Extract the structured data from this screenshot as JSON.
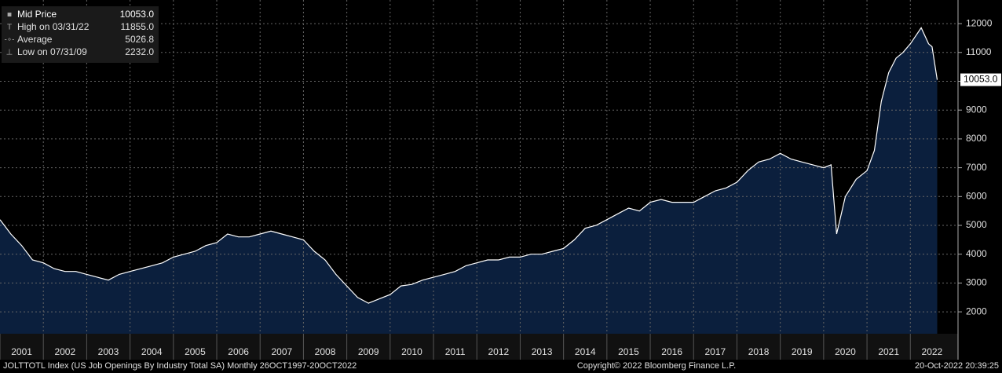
{
  "chart_data": {
    "type": "area",
    "legend": [
      {
        "label": "Mid Price",
        "value": 10053,
        "value_label": "10053.0"
      },
      {
        "label": "High on 03/31/22",
        "value": 11855,
        "value_label": "11855.0"
      },
      {
        "label": "Average",
        "value": 5026.8,
        "value_label": "5026.8"
      },
      {
        "label": "Low on 07/31/09",
        "value": 2232,
        "value_label": "2232.0"
      }
    ],
    "last_value": 10053,
    "last_value_label": "10053.0",
    "footer_left": "JOLTTOTL Index (US Job Openings By Industry Total SA)  Monthly 26OCT1997-20OCT2022",
    "footer_center": "Copyright© 2022 Bloomberg Finance L.P.",
    "footer_right": "20-Oct-2022 20:39:25",
    "color": "#ffffff",
    "fill": "#0b1f3d",
    "grid": true,
    "x": [
      2001.0,
      2001.25,
      2001.5,
      2001.75,
      2002.0,
      2002.25,
      2002.5,
      2002.75,
      2003.0,
      2003.25,
      2003.5,
      2003.75,
      2004.0,
      2004.25,
      2004.5,
      2004.75,
      2005.0,
      2005.25,
      2005.5,
      2005.75,
      2006.0,
      2006.25,
      2006.5,
      2006.75,
      2007.0,
      2007.25,
      2007.5,
      2007.75,
      2008.0,
      2008.25,
      2008.5,
      2008.75,
      2009.0,
      2009.25,
      2009.5,
      2009.75,
      2010.0,
      2010.25,
      2010.5,
      2010.75,
      2011.0,
      2011.25,
      2011.5,
      2011.75,
      2012.0,
      2012.25,
      2012.5,
      2012.75,
      2013.0,
      2013.25,
      2013.5,
      2013.75,
      2014.0,
      2014.25,
      2014.5,
      2014.75,
      2015.0,
      2015.25,
      2015.5,
      2015.75,
      2016.0,
      2016.25,
      2016.5,
      2016.75,
      2017.0,
      2017.25,
      2017.5,
      2017.75,
      2018.0,
      2018.25,
      2018.5,
      2018.75,
      2019.0,
      2019.25,
      2019.5,
      2019.75,
      2020.0,
      2020.17,
      2020.3,
      2020.5,
      2020.75,
      2021.0,
      2021.17,
      2021.33,
      2021.5,
      2021.67,
      2021.83,
      2022.0,
      2022.25,
      2022.42,
      2022.5,
      2022.62
    ],
    "values": [
      5200,
      4700,
      4300,
      3800,
      3700,
      3500,
      3400,
      3400,
      3300,
      3200,
      3100,
      3300,
      3400,
      3500,
      3600,
      3700,
      3900,
      4000,
      4100,
      4300,
      4400,
      4700,
      4600,
      4600,
      4700,
      4800,
      4700,
      4600,
      4500,
      4100,
      3800,
      3300,
      2900,
      2500,
      2300,
      2450,
      2600,
      2900,
      2950,
      3100,
      3200,
      3300,
      3400,
      3600,
      3700,
      3800,
      3800,
      3900,
      3900,
      4000,
      4000,
      4100,
      4200,
      4500,
      4900,
      5000,
      5200,
      5400,
      5600,
      5500,
      5800,
      5900,
      5800,
      5800,
      5800,
      6000,
      6200,
      6300,
      6500,
      6900,
      7200,
      7300,
      7500,
      7300,
      7200,
      7100,
      7000,
      7100,
      4700,
      6000,
      6600,
      6900,
      7600,
      9300,
      10300,
      10800,
      11000,
      11300,
      11855,
      11300,
      11200,
      10053
    ],
    "xlim": [
      2001.0,
      2023.1
    ],
    "xticks": [
      2001,
      2002,
      2003,
      2004,
      2005,
      2006,
      2007,
      2008,
      2009,
      2010,
      2011,
      2012,
      2013,
      2014,
      2015,
      2016,
      2017,
      2018,
      2019,
      2020,
      2021,
      2022
    ],
    "ylim": [
      1240,
      12820
    ],
    "yticks": [
      2000,
      3000,
      4000,
      5000,
      6000,
      7000,
      8000,
      9000,
      10000,
      11000,
      12000
    ]
  }
}
